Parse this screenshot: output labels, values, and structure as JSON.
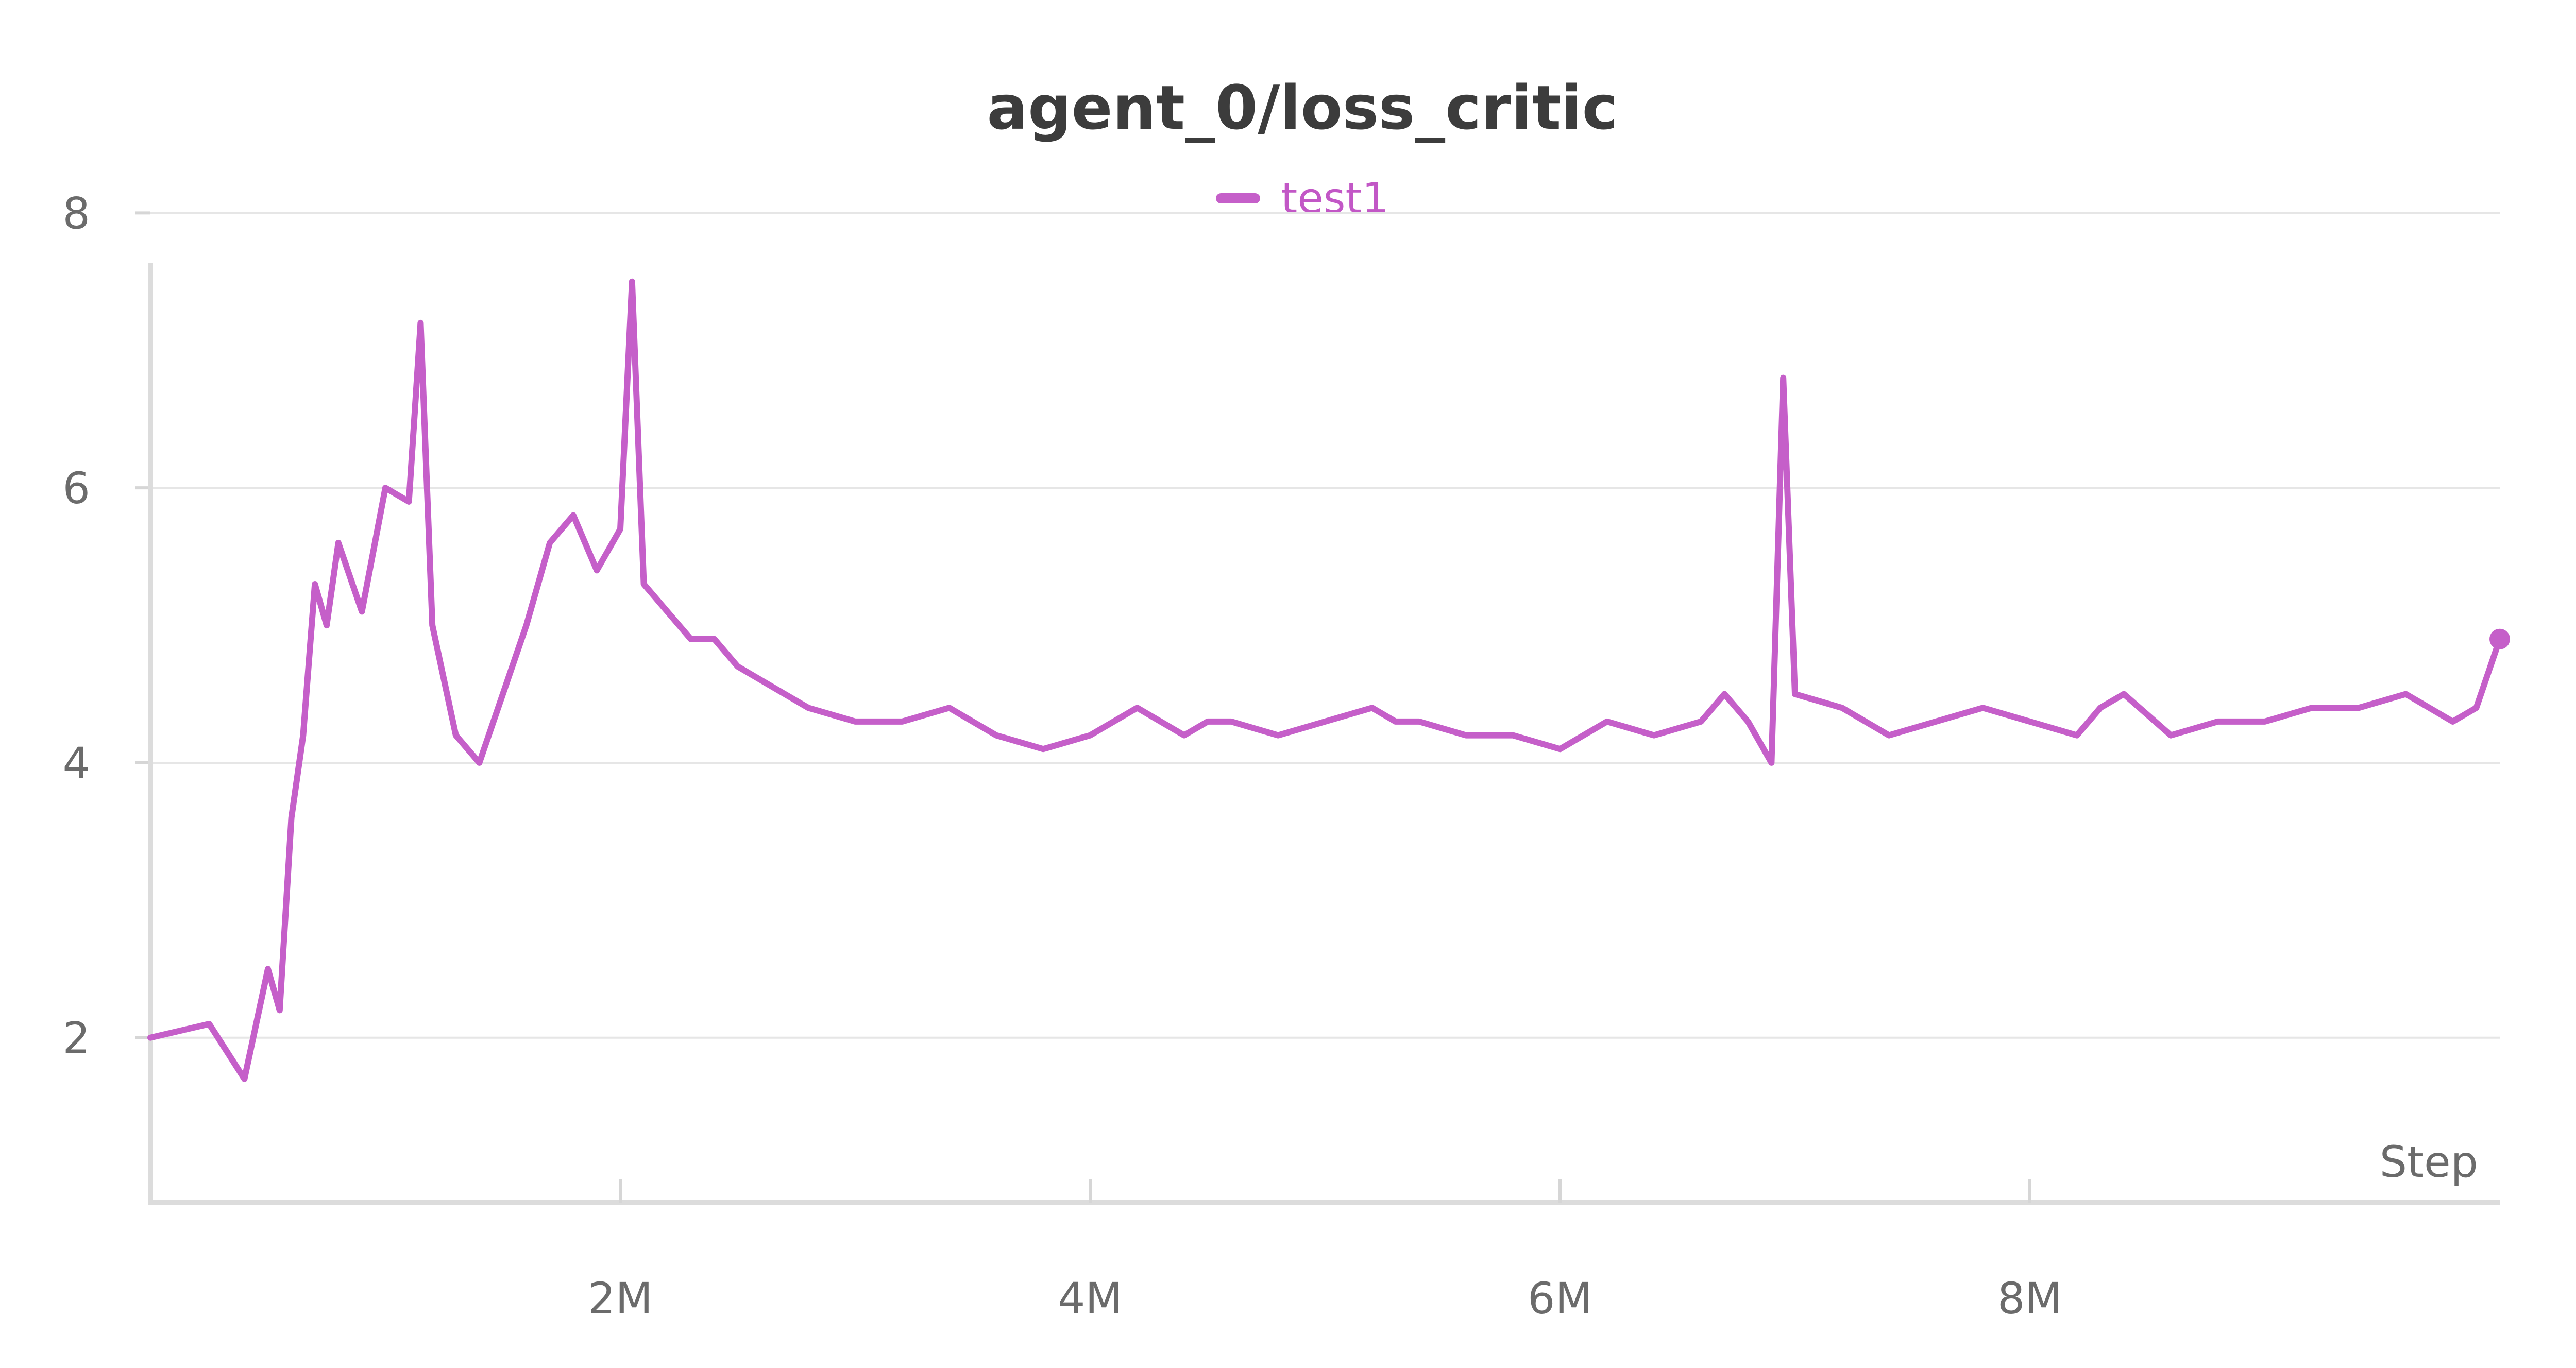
{
  "chart_data": {
    "type": "line",
    "title": "agent_0/loss_critic",
    "xlabel": "Step",
    "ylabel": "",
    "xlim": [
      0,
      10000000
    ],
    "ylim": [
      0.8,
      8.2
    ],
    "x_ticks": [
      2000000,
      4000000,
      6000000,
      8000000
    ],
    "x_tick_labels": [
      "2M",
      "4M",
      "6M",
      "8M"
    ],
    "y_ticks": [
      2,
      4,
      6,
      8
    ],
    "y_tick_labels": [
      "2",
      "4",
      "6",
      "8"
    ],
    "grid": "horizontal",
    "legend_position": "top-center",
    "series": [
      {
        "name": "test1",
        "color": "#c55fc9",
        "x": [
          0,
          250000,
          400000,
          500000,
          550000,
          600000,
          650000,
          700000,
          750000,
          800000,
          900000,
          1000000,
          1100000,
          1150000,
          1200000,
          1300000,
          1400000,
          1500000,
          1600000,
          1700000,
          1800000,
          1900000,
          2000000,
          2050000,
          2100000,
          2200000,
          2300000,
          2400000,
          2500000,
          2600000,
          2800000,
          3000000,
          3200000,
          3400000,
          3600000,
          3800000,
          4000000,
          4200000,
          4400000,
          4500000,
          4600000,
          4800000,
          5000000,
          5200000,
          5300000,
          5400000,
          5600000,
          5800000,
          6000000,
          6200000,
          6400000,
          6600000,
          6700000,
          6800000,
          6900000,
          6950000,
          7000000,
          7200000,
          7400000,
          7600000,
          7800000,
          8000000,
          8200000,
          8300000,
          8400000,
          8600000,
          8800000,
          9000000,
          9200000,
          9400000,
          9600000,
          9800000,
          9900000,
          10000000
        ],
        "values": [
          2.0,
          2.1,
          1.7,
          2.5,
          2.2,
          3.6,
          4.2,
          5.3,
          5.0,
          5.6,
          5.1,
          6.0,
          5.9,
          7.2,
          5.0,
          4.2,
          4.0,
          4.5,
          5.0,
          5.6,
          5.8,
          5.4,
          5.7,
          7.5,
          5.3,
          5.1,
          4.9,
          4.9,
          4.7,
          4.6,
          4.4,
          4.3,
          4.3,
          4.4,
          4.2,
          4.1,
          4.2,
          4.4,
          4.2,
          4.3,
          4.3,
          4.2,
          4.3,
          4.4,
          4.3,
          4.3,
          4.2,
          4.2,
          4.1,
          4.3,
          4.2,
          4.3,
          4.5,
          4.3,
          4.0,
          6.8,
          4.5,
          4.4,
          4.2,
          4.3,
          4.4,
          4.3,
          4.2,
          4.4,
          4.5,
          4.2,
          4.3,
          4.3,
          4.4,
          4.4,
          4.5,
          4.3,
          4.4,
          4.9
        ]
      }
    ]
  }
}
